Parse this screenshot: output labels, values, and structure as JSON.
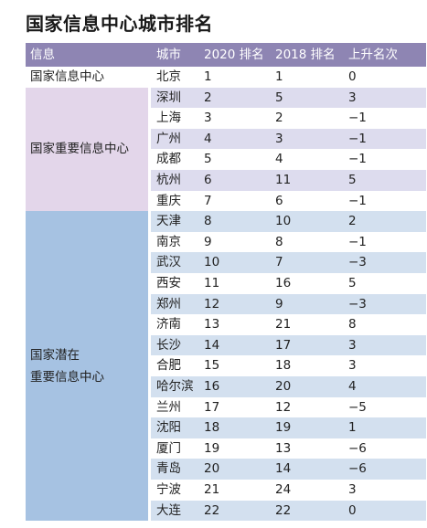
{
  "title": "国家信息中心城市排名",
  "colors": {
    "header_bg": "#8e85b3",
    "row_light": "#ffffff",
    "row_alt": "#dddcee",
    "row_blue": "#d3e0ef",
    "group1_bg": "#ffffff",
    "group2_bg": "#e3d6ea",
    "group3_bg": "#a6c2e2"
  },
  "headers": [
    "信息",
    "城市",
    "2020 排名",
    "2018 排名",
    "上升名次"
  ],
  "groups": [
    {
      "label": "国家信息中心",
      "rows": [
        {
          "city": "北京",
          "rank2020": "1",
          "rank2018": "1",
          "change": "0"
        }
      ]
    },
    {
      "label": "国家重要信息中心",
      "rows": [
        {
          "city": "深圳",
          "rank2020": "2",
          "rank2018": "5",
          "change": "3"
        },
        {
          "city": "上海",
          "rank2020": "3",
          "rank2018": "2",
          "change": "−1"
        },
        {
          "city": "广州",
          "rank2020": "4",
          "rank2018": "3",
          "change": "−1"
        },
        {
          "city": "成都",
          "rank2020": "5",
          "rank2018": "4",
          "change": "−1"
        },
        {
          "city": "杭州",
          "rank2020": "6",
          "rank2018": "11",
          "change": "5"
        },
        {
          "city": "重庆",
          "rank2020": "7",
          "rank2018": "6",
          "change": "−1"
        }
      ]
    },
    {
      "label": "国家潜在\n重要信息中心",
      "rows": [
        {
          "city": "天津",
          "rank2020": "8",
          "rank2018": "10",
          "change": "2"
        },
        {
          "city": "南京",
          "rank2020": "9",
          "rank2018": "8",
          "change": "−1"
        },
        {
          "city": "武汉",
          "rank2020": "10",
          "rank2018": "7",
          "change": "−3"
        },
        {
          "city": "西安",
          "rank2020": "11",
          "rank2018": "16",
          "change": "5"
        },
        {
          "city": "郑州",
          "rank2020": "12",
          "rank2018": "9",
          "change": "−3"
        },
        {
          "city": "济南",
          "rank2020": "13",
          "rank2018": "21",
          "change": "8"
        },
        {
          "city": "长沙",
          "rank2020": "14",
          "rank2018": "17",
          "change": "3"
        },
        {
          "city": "合肥",
          "rank2020": "15",
          "rank2018": "18",
          "change": "3"
        },
        {
          "city": "哈尔滨",
          "rank2020": "16",
          "rank2018": "20",
          "change": "4"
        },
        {
          "city": "兰州",
          "rank2020": "17",
          "rank2018": "12",
          "change": "−5"
        },
        {
          "city": "沈阳",
          "rank2020": "18",
          "rank2018": "19",
          "change": "1"
        },
        {
          "city": "厦门",
          "rank2020": "19",
          "rank2018": "13",
          "change": "−6"
        },
        {
          "city": "青岛",
          "rank2020": "20",
          "rank2018": "14",
          "change": "−6"
        },
        {
          "city": "宁波",
          "rank2020": "21",
          "rank2018": "24",
          "change": "3"
        },
        {
          "city": "大连",
          "rank2020": "22",
          "rank2018": "22",
          "change": "0"
        }
      ]
    }
  ]
}
